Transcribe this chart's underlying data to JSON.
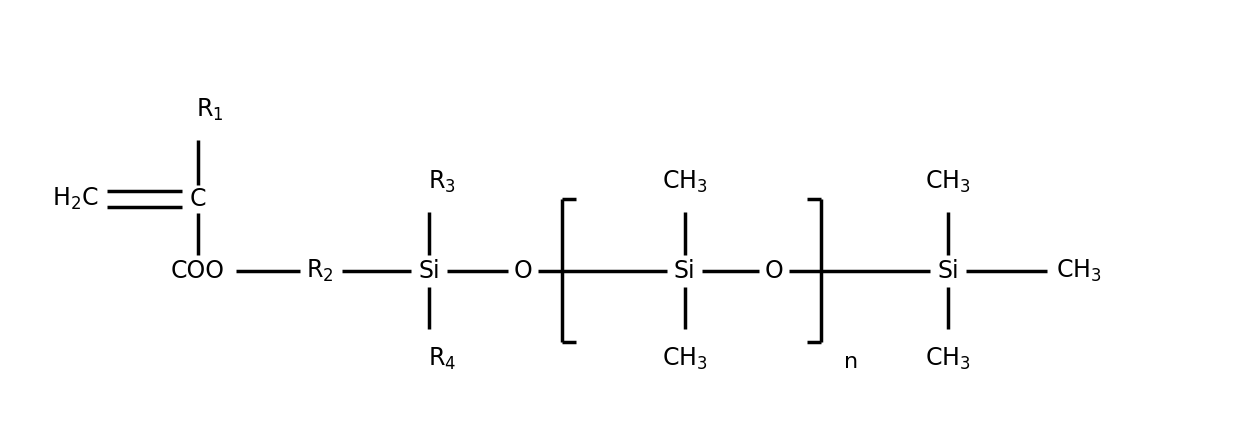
{
  "bg_color": "#ffffff",
  "line_color": "#000000",
  "font_color": "#000000",
  "line_width": 2.5,
  "font_size": 17,
  "figsize": [
    12.4,
    4.29
  ],
  "dpi": 100,
  "xlim": [
    0,
    12.4
  ],
  "ylim": [
    0,
    4.29
  ]
}
